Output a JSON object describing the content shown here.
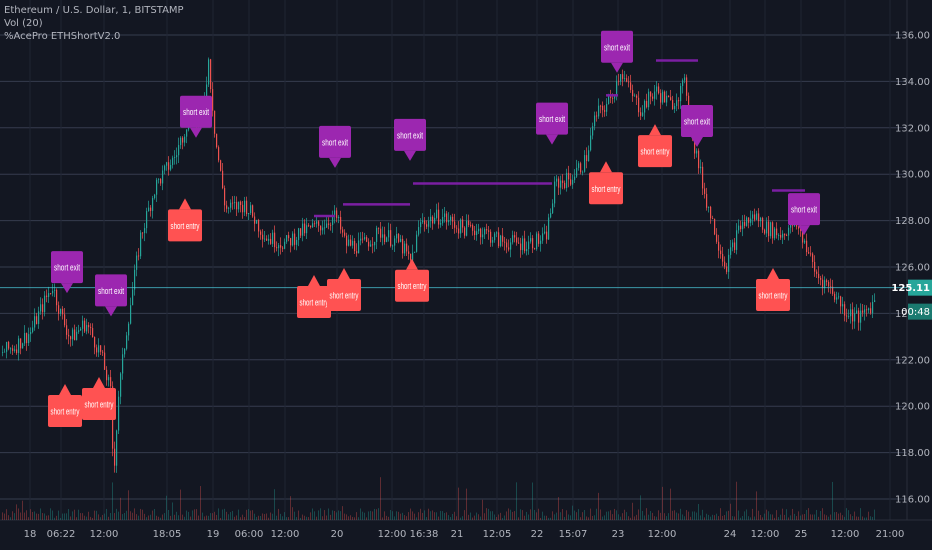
{
  "legend": {
    "symbol": "Ethereum / U.S. Dollar, 1, BITSTAMP",
    "volume": "Vol (20)",
    "strategy": "%AcePro ETHShortV2.0"
  },
  "colors": {
    "background": "#131722",
    "grid": "#363c4e",
    "up": "#26a69a",
    "down": "#ef5350",
    "short_entry": "#ff5252",
    "short_exit": "#9c27b0",
    "level_line": "#7b1fa2",
    "price_badge": "#26a69a",
    "crosshair": "#4dd0e1"
  },
  "price_badge": {
    "price": "125.11",
    "countdown": "00:48"
  },
  "chart_data": {
    "type": "candlestick",
    "ylim": [
      115.5,
      136.8
    ],
    "y_ticks": [
      "136.00",
      "134.00",
      "132.00",
      "130.00",
      "128.00",
      "126.00",
      "124.00",
      "122.00",
      "120.00",
      "118.00",
      "116.00"
    ],
    "x_ticks": [
      "18",
      "06:22",
      "12:00",
      "18:05",
      "19",
      "06:00",
      "12:00",
      "20",
      "12:00",
      "16:38",
      "21",
      "12:05",
      "22",
      "15:07",
      "23",
      "12:00",
      "24",
      "12:00",
      "25",
      "12:00",
      "21:00"
    ],
    "price_path": [
      [
        0,
        122.3
      ],
      [
        15,
        122.6
      ],
      [
        30,
        123.2
      ],
      [
        45,
        124.6
      ],
      [
        52,
        125.2
      ],
      [
        60,
        124.0
      ],
      [
        70,
        122.9
      ],
      [
        85,
        123.6
      ],
      [
        100,
        122.3
      ],
      [
        110,
        120.6
      ],
      [
        113,
        117.0
      ],
      [
        118,
        120.5
      ],
      [
        125,
        123.0
      ],
      [
        140,
        127.3
      ],
      [
        155,
        129.5
      ],
      [
        175,
        130.8
      ],
      [
        190,
        132.7
      ],
      [
        200,
        131.9
      ],
      [
        208,
        134.9
      ],
      [
        215,
        131.5
      ],
      [
        225,
        128.5
      ],
      [
        245,
        128.7
      ],
      [
        265,
        127.3
      ],
      [
        285,
        127.0
      ],
      [
        300,
        127.5
      ],
      [
        320,
        127.8
      ],
      [
        335,
        128.2
      ],
      [
        345,
        127.0
      ],
      [
        360,
        126.9
      ],
      [
        380,
        127.5
      ],
      [
        400,
        127.0
      ],
      [
        410,
        126.2
      ],
      [
        420,
        127.9
      ],
      [
        440,
        128.2
      ],
      [
        460,
        127.7
      ],
      [
        480,
        127.6
      ],
      [
        500,
        127.1
      ],
      [
        520,
        127.0
      ],
      [
        545,
        127.2
      ],
      [
        555,
        129.6
      ],
      [
        570,
        129.8
      ],
      [
        585,
        130.6
      ],
      [
        595,
        132.5
      ],
      [
        610,
        133.2
      ],
      [
        620,
        134.5
      ],
      [
        630,
        133.5
      ],
      [
        640,
        132.8
      ],
      [
        655,
        133.6
      ],
      [
        670,
        133.0
      ],
      [
        685,
        133.9
      ],
      [
        692,
        131.6
      ],
      [
        705,
        129.0
      ],
      [
        715,
        127.5
      ],
      [
        725,
        126.0
      ],
      [
        740,
        127.8
      ],
      [
        755,
        128.2
      ],
      [
        765,
        127.7
      ],
      [
        780,
        127.4
      ],
      [
        795,
        127.9
      ],
      [
        805,
        127.0
      ],
      [
        815,
        125.7
      ],
      [
        830,
        125.1
      ],
      [
        845,
        124.1
      ],
      [
        860,
        123.8
      ],
      [
        875,
        124.6
      ]
    ],
    "hlines": [
      {
        "x1": 314,
        "x2": 335,
        "price": 128.2
      },
      {
        "x1": 343,
        "x2": 410,
        "price": 128.7
      },
      {
        "x1": 413,
        "x2": 552,
        "price": 129.6
      },
      {
        "x1": 606,
        "x2": 618,
        "price": 133.4
      },
      {
        "x1": 656,
        "x2": 698,
        "price": 134.9
      },
      {
        "x1": 772,
        "x2": 805,
        "price": 129.3
      }
    ],
    "markers": [
      {
        "kind": "exit",
        "label": "short exit",
        "x": 67,
        "price": 124.7
      },
      {
        "kind": "entry",
        "label": "short entry",
        "x": 65,
        "price": 121.0
      },
      {
        "kind": "exit",
        "label": "short exit",
        "x": 111,
        "price": 123.7
      },
      {
        "kind": "entry",
        "label": "short entry",
        "x": 99,
        "price": 121.3
      },
      {
        "kind": "exit",
        "label": "short exit",
        "x": 196,
        "price": 131.4
      },
      {
        "kind": "entry",
        "label": "short entry",
        "x": 185,
        "price": 129.0
      },
      {
        "kind": "exit",
        "label": "short exit",
        "x": 335,
        "price": 130.1
      },
      {
        "kind": "entry",
        "label": "short entry",
        "x": 314,
        "price": 125.7
      },
      {
        "kind": "entry",
        "label": "short entry",
        "x": 344,
        "price": 126.0
      },
      {
        "kind": "exit",
        "label": "short exit",
        "x": 410,
        "price": 130.4
      },
      {
        "kind": "entry",
        "label": "short entry",
        "x": 412,
        "price": 126.4
      },
      {
        "kind": "exit",
        "label": "short exit",
        "x": 552,
        "price": 131.1
      },
      {
        "kind": "entry",
        "label": "short entry",
        "x": 606,
        "price": 130.6
      },
      {
        "kind": "exit",
        "label": "short exit",
        "x": 617,
        "price": 134.2
      },
      {
        "kind": "entry",
        "label": "short entry",
        "x": 655,
        "price": 132.2
      },
      {
        "kind": "exit",
        "label": "short exit",
        "x": 697,
        "price": 131.0
      },
      {
        "kind": "entry",
        "label": "short entry",
        "x": 773,
        "price": 126.0
      },
      {
        "kind": "exit",
        "label": "short exit",
        "x": 804,
        "price": 127.2
      }
    ]
  }
}
